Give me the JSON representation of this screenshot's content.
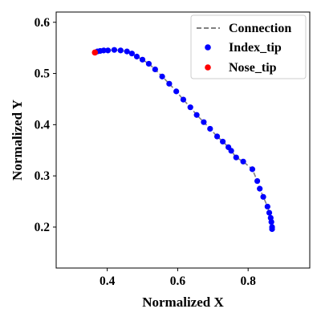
{
  "chart_data": {
    "type": "scatter",
    "xlabel": "Normalized X",
    "ylabel": "Normalized Y",
    "xlim": [
      0.255,
      0.975
    ],
    "ylim": [
      0.12,
      0.62
    ],
    "xticks": [
      0.4,
      0.6,
      0.8
    ],
    "yticks": [
      0.2,
      0.3,
      0.4,
      0.5,
      0.6
    ],
    "xtick_labels": [
      "0.4",
      "0.6",
      "0.8"
    ],
    "ytick_labels": [
      "0.2",
      "0.3",
      "0.4",
      "0.5",
      "0.6"
    ],
    "grid": false,
    "legend_position": "top-right",
    "series": [
      {
        "name": "Connection",
        "kind": "line",
        "style": "dashed",
        "color": "#808080",
        "x": [
          0.365,
          0.372,
          0.38,
          0.39,
          0.402,
          0.42,
          0.438,
          0.456,
          0.47,
          0.484,
          0.5,
          0.518,
          0.536,
          0.556,
          0.576,
          0.596,
          0.616,
          0.636,
          0.654,
          0.674,
          0.692,
          0.712,
          0.728,
          0.744,
          0.752,
          0.766,
          0.786,
          0.812,
          0.826,
          0.833,
          0.843,
          0.855,
          0.86,
          0.864,
          0.866,
          0.868,
          0.868
        ],
        "y": [
          0.541,
          0.543,
          0.544,
          0.545,
          0.545,
          0.546,
          0.545,
          0.543,
          0.539,
          0.533,
          0.527,
          0.519,
          0.508,
          0.494,
          0.48,
          0.465,
          0.449,
          0.434,
          0.419,
          0.405,
          0.392,
          0.377,
          0.367,
          0.356,
          0.349,
          0.336,
          0.328,
          0.313,
          0.29,
          0.275,
          0.259,
          0.24,
          0.228,
          0.218,
          0.21,
          0.2,
          0.196
        ]
      },
      {
        "name": "Index_tip",
        "kind": "scatter",
        "color": "#0000ff",
        "x": [
          0.372,
          0.38,
          0.39,
          0.402,
          0.42,
          0.438,
          0.456,
          0.47,
          0.484,
          0.5,
          0.518,
          0.536,
          0.556,
          0.576,
          0.596,
          0.616,
          0.636,
          0.654,
          0.674,
          0.692,
          0.712,
          0.728,
          0.744,
          0.752,
          0.766,
          0.786,
          0.812,
          0.826,
          0.833,
          0.843,
          0.855,
          0.86,
          0.864,
          0.866,
          0.868,
          0.868
        ],
        "y": [
          0.543,
          0.544,
          0.545,
          0.545,
          0.546,
          0.545,
          0.543,
          0.539,
          0.533,
          0.527,
          0.519,
          0.508,
          0.494,
          0.48,
          0.465,
          0.449,
          0.434,
          0.419,
          0.405,
          0.392,
          0.377,
          0.367,
          0.356,
          0.349,
          0.336,
          0.328,
          0.313,
          0.29,
          0.275,
          0.259,
          0.24,
          0.228,
          0.218,
          0.21,
          0.2,
          0.196
        ]
      },
      {
        "name": "Nose_tip",
        "kind": "scatter",
        "color": "#ff0000",
        "x": [
          0.365
        ],
        "y": [
          0.541
        ]
      }
    ]
  }
}
